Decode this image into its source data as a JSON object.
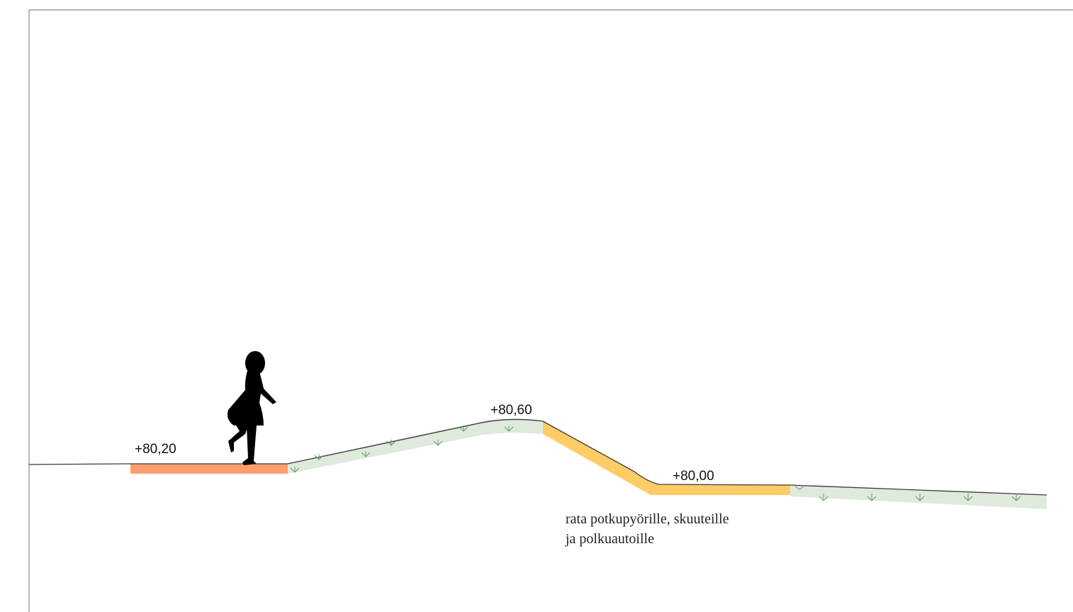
{
  "levels": {
    "start_level": "+80,20",
    "crest_level": "+80,60",
    "track_bottom_level": "+80,00"
  },
  "caption": {
    "line1": "rata potkupyörille, skuuteille",
    "line2": "ja polkuautoille"
  },
  "colors": {
    "paved_surface": "#ff9f6e",
    "track_surface": "#ffcc66",
    "grass": "#dfeadd",
    "grass_symbol": "#5e9e63",
    "ground_line": "#3a3a3a",
    "silhouette": "#000000"
  }
}
